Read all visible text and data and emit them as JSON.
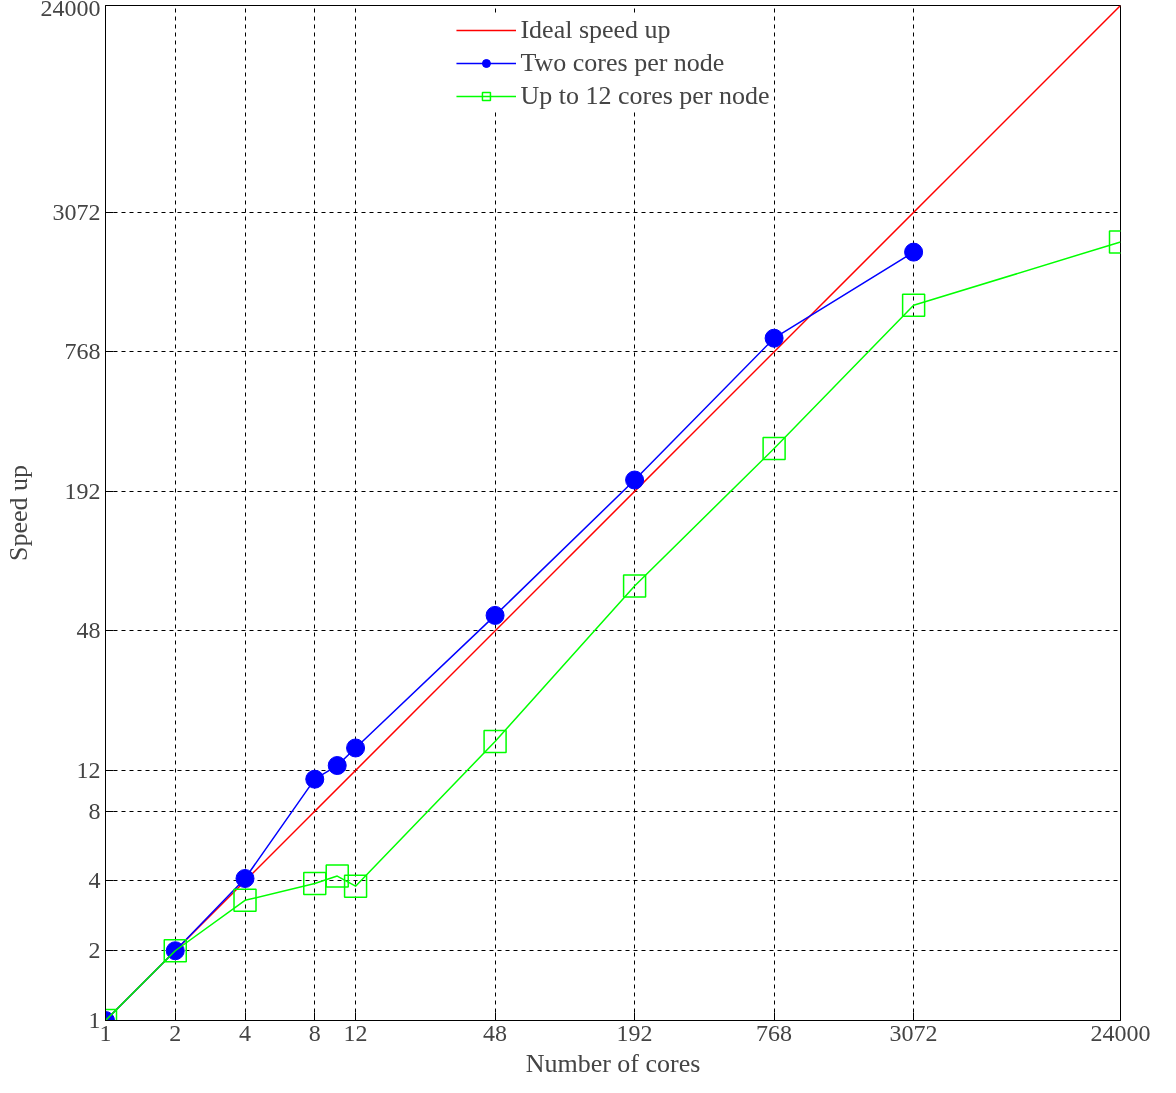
{
  "chart_data": {
    "type": "line",
    "xlabel": "Number of cores",
    "ylabel": "Speed up",
    "log": "xy",
    "xlim": [
      1,
      24000
    ],
    "ylim": [
      1,
      24000
    ],
    "xticks": [
      1,
      2,
      4,
      8,
      12,
      48,
      192,
      768,
      3072,
      24000
    ],
    "yticks": [
      1,
      2,
      4,
      8,
      12,
      48,
      192,
      768,
      3072,
      24000
    ],
    "grid": true,
    "legend": "top",
    "series": [
      {
        "name": "Ideal speed up",
        "color": "#ff0000",
        "marker": "none",
        "x": [
          1,
          24000
        ],
        "values": [
          1,
          24000
        ]
      },
      {
        "name": "Two cores per node",
        "color": "#0000ff",
        "marker": "circle",
        "x": [
          1,
          2,
          4,
          8,
          10,
          12,
          48,
          192,
          768,
          3072
        ],
        "values": [
          1,
          2,
          4.1,
          11,
          12.6,
          15,
          56,
          215,
          880,
          2070
        ]
      },
      {
        "name": "Up to 12 cores per node",
        "color": "#00ff00",
        "marker": "square",
        "x": [
          1,
          2,
          4,
          8,
          10,
          12,
          48,
          192,
          768,
          3072,
          24000
        ],
        "values": [
          1,
          2,
          3.3,
          3.9,
          4.2,
          3.8,
          16,
          75,
          294,
          1220,
          2290
        ]
      }
    ]
  }
}
